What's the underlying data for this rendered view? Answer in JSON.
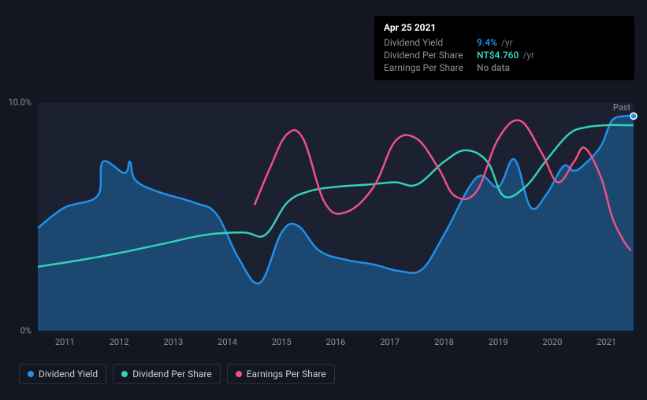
{
  "tooltip": {
    "date": "Apr 25 2021",
    "rows": [
      {
        "label": "Dividend Yield",
        "value": "9.4%",
        "unit": "/yr",
        "color": "#2090ea"
      },
      {
        "label": "Dividend Per Share",
        "value": "NT$4.760",
        "unit": "/yr",
        "color": "#35d0ba"
      },
      {
        "label": "Earnings Per Share",
        "value": "No data",
        "unit": "",
        "color": "#6e7681"
      }
    ]
  },
  "chart": {
    "background_color": "#131722",
    "plot_bg": "#1b2130",
    "past_label": "Past",
    "y": {
      "min": 0,
      "max": 10,
      "ticks": [
        {
          "v": 10,
          "label": "10.0%"
        },
        {
          "v": 0,
          "label": "0%"
        }
      ]
    },
    "x": {
      "min": 2010.5,
      "max": 2021.5,
      "ticks": [
        2011,
        2012,
        2013,
        2014,
        2015,
        2016,
        2017,
        2018,
        2019,
        2020,
        2021
      ]
    },
    "series": [
      {
        "key": "dividend_yield",
        "label": "Dividend Yield",
        "color": "#2090ea",
        "area": true,
        "points": [
          [
            2010.5,
            4.5
          ],
          [
            2011.0,
            5.4
          ],
          [
            2011.6,
            5.9
          ],
          [
            2011.7,
            7.4
          ],
          [
            2012.1,
            6.9
          ],
          [
            2012.2,
            7.4
          ],
          [
            2012.3,
            6.6
          ],
          [
            2012.7,
            6.1
          ],
          [
            2013.4,
            5.6
          ],
          [
            2013.8,
            5.1
          ],
          [
            2014.2,
            3.2
          ],
          [
            2014.6,
            2.1
          ],
          [
            2015.0,
            4.3
          ],
          [
            2015.3,
            4.6
          ],
          [
            2015.7,
            3.5
          ],
          [
            2016.2,
            3.1
          ],
          [
            2016.7,
            2.9
          ],
          [
            2017.2,
            2.6
          ],
          [
            2017.6,
            2.7
          ],
          [
            2018.0,
            4.2
          ],
          [
            2018.6,
            6.7
          ],
          [
            2019.0,
            6.3
          ],
          [
            2019.3,
            7.5
          ],
          [
            2019.6,
            5.4
          ],
          [
            2019.9,
            6.0
          ],
          [
            2020.2,
            7.2
          ],
          [
            2020.4,
            7.0
          ],
          [
            2020.6,
            7.3
          ],
          [
            2020.9,
            8.1
          ],
          [
            2021.1,
            9.2
          ],
          [
            2021.35,
            9.4
          ],
          [
            2021.5,
            9.4
          ]
        ]
      },
      {
        "key": "dividend_per_share",
        "label": "Dividend Per Share",
        "color": "#35d0ba",
        "area": false,
        "points": [
          [
            2010.5,
            2.8
          ],
          [
            2011.3,
            3.1
          ],
          [
            2012.0,
            3.4
          ],
          [
            2012.8,
            3.8
          ],
          [
            2013.6,
            4.2
          ],
          [
            2014.3,
            4.3
          ],
          [
            2014.7,
            4.2
          ],
          [
            2015.1,
            5.6
          ],
          [
            2015.5,
            6.1
          ],
          [
            2016.0,
            6.3
          ],
          [
            2016.6,
            6.4
          ],
          [
            2017.1,
            6.5
          ],
          [
            2017.5,
            6.4
          ],
          [
            2018.0,
            7.4
          ],
          [
            2018.4,
            7.9
          ],
          [
            2018.8,
            7.4
          ],
          [
            2019.1,
            5.9
          ],
          [
            2019.5,
            6.3
          ],
          [
            2019.9,
            7.5
          ],
          [
            2020.3,
            8.6
          ],
          [
            2020.6,
            8.9
          ],
          [
            2021.0,
            9.0
          ],
          [
            2021.35,
            9.0
          ],
          [
            2021.5,
            9.0
          ]
        ]
      },
      {
        "key": "earnings_per_share",
        "label": "Earnings Per Share",
        "color": "#ef4f8b",
        "area": false,
        "points": [
          [
            2014.5,
            5.5
          ],
          [
            2014.8,
            7.2
          ],
          [
            2015.1,
            8.6
          ],
          [
            2015.4,
            8.4
          ],
          [
            2015.8,
            5.6
          ],
          [
            2016.2,
            5.2
          ],
          [
            2016.7,
            6.3
          ],
          [
            2017.1,
            8.3
          ],
          [
            2017.5,
            8.4
          ],
          [
            2017.9,
            7.1
          ],
          [
            2018.2,
            5.9
          ],
          [
            2018.6,
            6.1
          ],
          [
            2019.0,
            8.4
          ],
          [
            2019.4,
            9.2
          ],
          [
            2019.8,
            7.8
          ],
          [
            2020.1,
            6.5
          ],
          [
            2020.4,
            7.4
          ],
          [
            2020.6,
            8.0
          ],
          [
            2020.9,
            6.7
          ],
          [
            2021.1,
            5.0
          ],
          [
            2021.3,
            4.0
          ],
          [
            2021.45,
            3.5
          ]
        ]
      }
    ]
  },
  "legend": [
    {
      "label": "Dividend Yield",
      "color": "#2090ea"
    },
    {
      "label": "Dividend Per Share",
      "color": "#35d0ba"
    },
    {
      "label": "Earnings Per Share",
      "color": "#ef4f8b"
    }
  ]
}
